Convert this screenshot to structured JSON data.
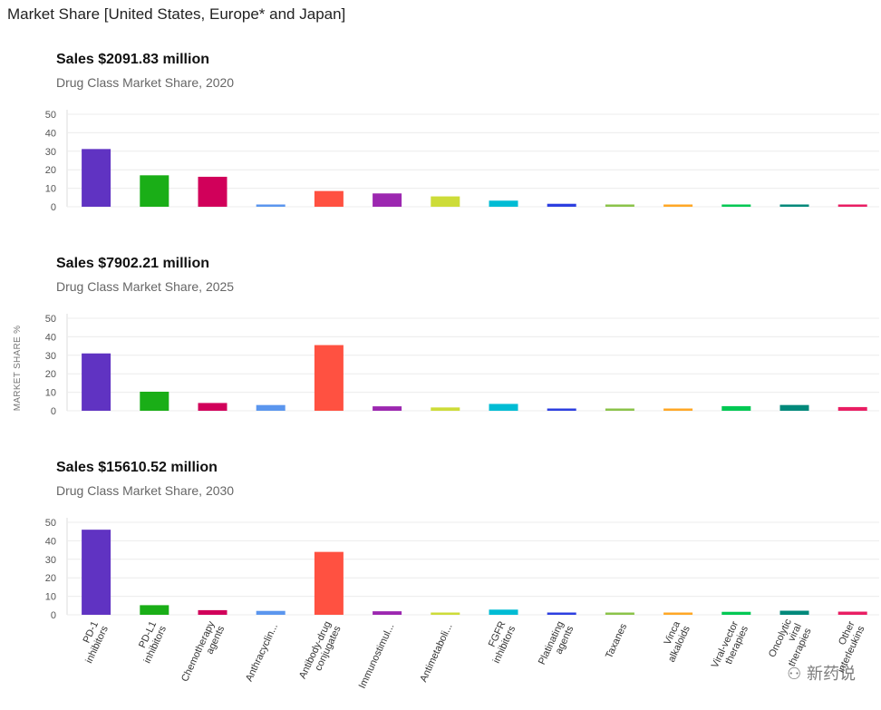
{
  "page_title": "Market Share [United States, Europe* and Japan]",
  "watermark_text": "新药说",
  "chart_data": {
    "type": "bar",
    "ylabel": "MARKET SHARE %",
    "ylim": [
      0,
      50
    ],
    "yticks": [
      0,
      10,
      20,
      30,
      40,
      50
    ],
    "grid": true,
    "categories": [
      [
        "PD-1",
        "inhibitors"
      ],
      [
        "PD-L1",
        "inhibitors"
      ],
      [
        "Chemotherapy",
        "agents"
      ],
      [
        "Anthracyclin..."
      ],
      [
        "Antibody-drug",
        "conjugates"
      ],
      [
        "Immunostimul..."
      ],
      [
        "Antimetaboli..."
      ],
      [
        "FGFR",
        "inhibitors"
      ],
      [
        "Platinating",
        "agents"
      ],
      [
        "Taxanes"
      ],
      [
        "Vinca",
        "alkaloids"
      ],
      [
        "Viral-vector",
        "therapies"
      ],
      [
        "Oncolytic",
        "viral",
        "therapies"
      ],
      [
        "Other",
        "interleukins"
      ]
    ],
    "colors": [
      "#6033c2",
      "#1aae17",
      "#d1005a",
      "#5b96ee",
      "#ff5141",
      "#9c27b0",
      "#cddc39",
      "#00bcd4",
      "#2d3fe0",
      "#8bc34a",
      "#ffa726",
      "#00c853",
      "#00897b",
      "#e91e63"
    ],
    "panels": [
      {
        "title": "Sales $2091.83 million",
        "subtitle": "Drug Class Market Share, 2020",
        "values": [
          31.2,
          17.0,
          16.2,
          0.8,
          8.5,
          7.2,
          5.6,
          3.3,
          1.6,
          1.2,
          0.9,
          0.8,
          0.9,
          0.8
        ]
      },
      {
        "title": "Sales $7902.21 million",
        "subtitle": "Drug Class Market Share, 2025",
        "values": [
          31.0,
          10.3,
          4.2,
          3.1,
          35.5,
          2.4,
          1.8,
          3.7,
          0.8,
          0.6,
          0.5,
          2.5,
          3.1,
          2.0
        ]
      },
      {
        "title": "Sales $15610.52 million",
        "subtitle": "Drug Class Market Share, 2030",
        "values": [
          46.0,
          5.2,
          2.5,
          2.1,
          34.0,
          1.9,
          1.1,
          2.8,
          0.8,
          0.6,
          0.4,
          1.6,
          2.2,
          1.7
        ]
      }
    ]
  }
}
